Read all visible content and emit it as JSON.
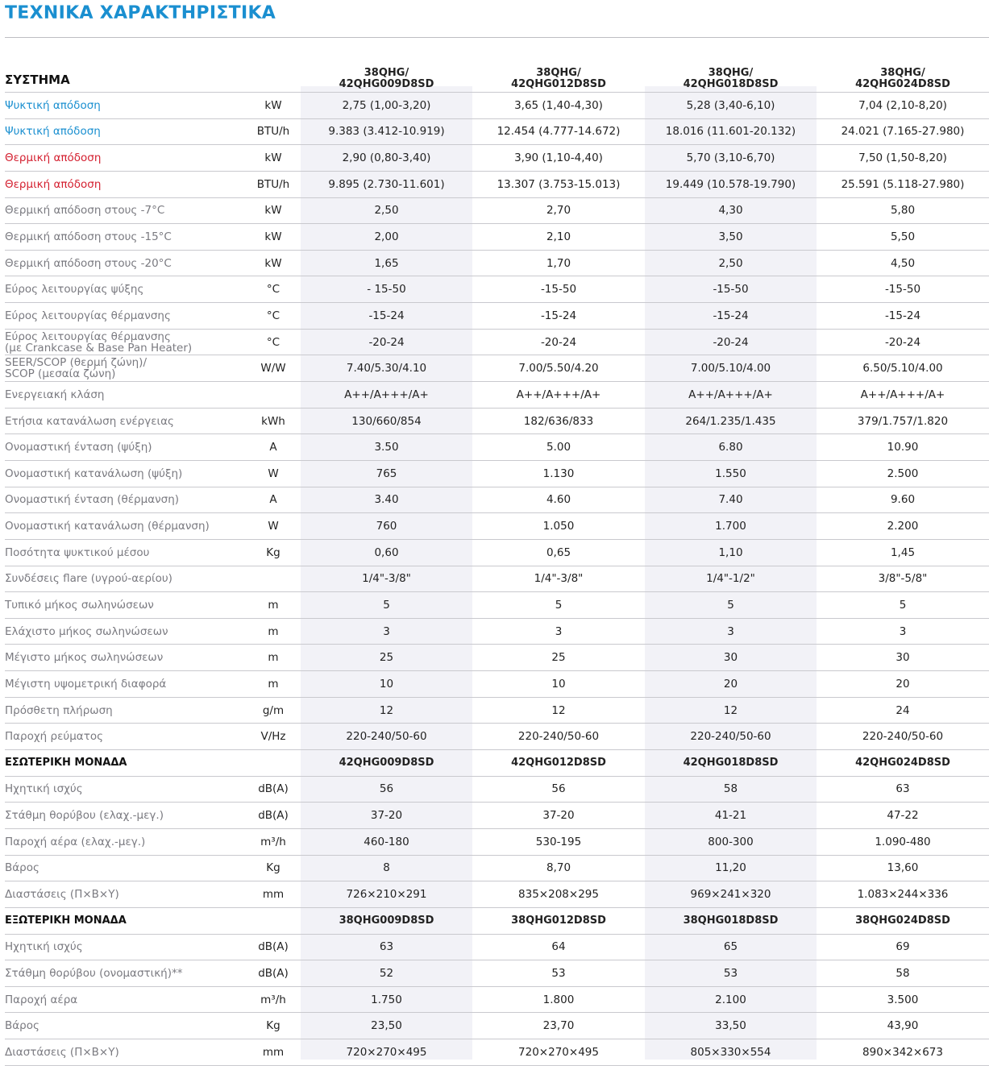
{
  "title": "ΤΕΧΝΙΚΑ ΧΑΡΑΚΤΗΡΙΣΤΙΚΑ",
  "colors": {
    "blue": "#1a8fd0",
    "red": "#d42030"
  },
  "sections": [
    {
      "label": "ΣΥΣΤΗΜΑ",
      "head": true,
      "models": [
        [
          "38QHG/",
          "42QHG009D8SD"
        ],
        [
          "38QHG/",
          "42QHG012D8SD"
        ],
        [
          "38QHG/",
          "42QHG018D8SD"
        ],
        [
          "38QHG/",
          "42QHG024D8SD"
        ]
      ],
      "rows": [
        {
          "label": "Ψυκτική απόδοση",
          "color": "blue",
          "unit": "kW",
          "values": [
            "2,75 (1,00-3,20)",
            "3,65 (1,40-4,30)",
            "5,28 (3,40-6,10)",
            "7,04 (2,10-8,20)"
          ]
        },
        {
          "label": "Ψυκτική απόδοση",
          "color": "blue",
          "unit": "BTU/h",
          "values": [
            "9.383 (3.412-10.919)",
            "12.454 (4.777-14.672)",
            "18.016 (11.601-20.132)",
            "24.021 (7.165-27.980)"
          ]
        },
        {
          "label": "Θερμική απόδοση",
          "color": "red",
          "unit": "kW",
          "values": [
            "2,90 (0,80-3,40)",
            "3,90 (1,10-4,40)",
            "5,70 (3,10-6,70)",
            "7,50 (1,50-8,20)"
          ]
        },
        {
          "label": "Θερμική απόδοση",
          "color": "red",
          "unit": "BTU/h",
          "values": [
            "9.895 (2.730-11.601)",
            "13.307 (3.753-15.013)",
            "19.449 (10.578-19.790)",
            "25.591 (5.118-27.980)"
          ]
        },
        {
          "label": "Θερμική απόδοση στους -7°C",
          "unit": "kW",
          "values": [
            "2,50",
            "2,70",
            "4,30",
            "5,80"
          ]
        },
        {
          "label": "Θερμική απόδοση στους -15°C",
          "unit": "kW",
          "values": [
            "2,00",
            "2,10",
            "3,50",
            "5,50"
          ]
        },
        {
          "label": "Θερμική απόδοση στους -20°C",
          "unit": "kW",
          "values": [
            "1,65",
            "1,70",
            "2,50",
            "4,50"
          ]
        },
        {
          "label": "Εύρος λειτουργίας ψύξης",
          "unit": "°C",
          "values": [
            "- 15-50",
            "-15-50",
            "-15-50",
            "-15-50"
          ]
        },
        {
          "label": "Εύρος λειτουργίας θέρμανσης",
          "unit": "°C",
          "values": [
            "-15-24",
            "-15-24",
            "-15-24",
            "-15-24"
          ]
        },
        {
          "label": "Εύρος λειτουργίας θέρμανσης",
          "label2": "(με Crankcase & Base Pan Heater)",
          "unit": "°C",
          "values": [
            "-20-24",
            "-20-24",
            "-20-24",
            "-20-24"
          ]
        },
        {
          "label": "SEER/SCOP (θερμή ζώνη)/",
          "label2": "SCOP (μεσαία ζώνη)",
          "unit": "W/W",
          "values": [
            "7.40/5.30/4.10",
            "7.00/5.50/4.20",
            "7.00/5.10/4.00",
            "6.50/5.10/4.00"
          ]
        },
        {
          "label": "Ενεργειακή κλάση",
          "unit": "",
          "values": [
            "A++/A+++/A+",
            "A++/A+++/A+",
            "A++/A+++/A+",
            "A++/A+++/A+"
          ]
        },
        {
          "label": "Ετήσια κατανάλωση ενέργειας",
          "unit": "kWh",
          "values": [
            "130/660/854",
            "182/636/833",
            "264/1.235/1.435",
            "379/1.757/1.820"
          ]
        },
        {
          "label": "Ονομαστική ένταση (ψύξη)",
          "unit": "A",
          "values": [
            "3.50",
            "5.00",
            "6.80",
            "10.90"
          ]
        },
        {
          "label": "Ονομαστική κατανάλωση (ψύξη)",
          "unit": "W",
          "values": [
            "765",
            "1.130",
            "1.550",
            "2.500"
          ]
        },
        {
          "label": "Ονομαστική ένταση (θέρμανση)",
          "unit": "A",
          "values": [
            "3.40",
            "4.60",
            "7.40",
            "9.60"
          ]
        },
        {
          "label": "Ονομαστική κατανάλωση (θέρμανση)",
          "unit": "W",
          "values": [
            "760",
            "1.050",
            "1.700",
            "2.200"
          ]
        },
        {
          "label": "Ποσότητα ψυκτικού μέσου",
          "unit": "Kg",
          "values": [
            "0,60",
            "0,65",
            "1,10",
            "1,45"
          ]
        },
        {
          "label": "Συνδέσεις flare (υγρού-αερίου)",
          "unit": "",
          "values": [
            "1/4\"-3/8\"",
            "1/4\"-3/8\"",
            "1/4\"-1/2\"",
            "3/8\"-5/8\""
          ]
        },
        {
          "label": "Τυπικό μήκος σωληνώσεων",
          "unit": "m",
          "values": [
            "5",
            "5",
            "5",
            "5"
          ]
        },
        {
          "label": "Ελάχιστο μήκος σωληνώσεων",
          "unit": "m",
          "values": [
            "3",
            "3",
            "3",
            "3"
          ]
        },
        {
          "label": "Μέγιστο μήκος σωληνώσεων",
          "unit": "m",
          "values": [
            "25",
            "25",
            "30",
            "30"
          ]
        },
        {
          "label": "Μέγιστη υψομετρική διαφορά",
          "unit": "m",
          "values": [
            "10",
            "10",
            "20",
            "20"
          ]
        },
        {
          "label": "Πρόσθετη πλήρωση",
          "unit": "g/m",
          "values": [
            "12",
            "12",
            "12",
            "24"
          ]
        },
        {
          "label": "Παροχή ρεύματος",
          "unit": "V/Hz",
          "values": [
            "220-240/50-60",
            "220-240/50-60",
            "220-240/50-60",
            "220-240/50-60"
          ]
        }
      ]
    },
    {
      "label": "ΕΣΩΤΕΡΙΚΗ ΜΟΝΑΔΑ",
      "models": [
        [
          "42QHG009D8SD"
        ],
        [
          "42QHG012D8SD"
        ],
        [
          "42QHG018D8SD"
        ],
        [
          "42QHG024D8SD"
        ]
      ],
      "rows": [
        {
          "label": "Ηχητική ισχύς",
          "unit": "dB(A)",
          "values": [
            "56",
            "56",
            "58",
            "63"
          ]
        },
        {
          "label": "Στάθμη θορύβου (ελαχ.-μεγ.)",
          "unit": "dB(A)",
          "values": [
            "37-20",
            "37-20",
            "41-21",
            "47-22"
          ]
        },
        {
          "label": "Παροχή αέρα (ελαχ.-μεγ.)",
          "unit": "m³/h",
          "values": [
            "460-180",
            "530-195",
            "800-300",
            "1.090-480"
          ]
        },
        {
          "label": "Βάρος",
          "unit": "Kg",
          "values": [
            "8",
            "8,70",
            "11,20",
            "13,60"
          ]
        },
        {
          "label": "Διαστάσεις (Π×Β×Υ)",
          "unit": "mm",
          "values": [
            "726×210×291",
            "835×208×295",
            "969×241×320",
            "1.083×244×336"
          ]
        }
      ]
    },
    {
      "label": "ΕΞΩΤΕΡΙΚΗ ΜΟΝΑΔΑ",
      "models": [
        [
          "38QHG009D8SD"
        ],
        [
          "38QHG012D8SD"
        ],
        [
          "38QHG018D8SD"
        ],
        [
          "38QHG024D8SD"
        ]
      ],
      "rows": [
        {
          "label": "Ηχητική ισχύς",
          "unit": "dB(A)",
          "values": [
            "63",
            "64",
            "65",
            "69"
          ]
        },
        {
          "label": "Στάθμη θορύβου (ονομαστική)**",
          "unit": "dB(A)",
          "values": [
            "52",
            "53",
            "53",
            "58"
          ]
        },
        {
          "label": "Παροχή αέρα",
          "unit": "m³/h",
          "values": [
            "1.750",
            "1.800",
            "2.100",
            "3.500"
          ]
        },
        {
          "label": "Βάρος",
          "unit": "Kg",
          "values": [
            "23,50",
            "23,70",
            "33,50",
            "43,90"
          ]
        },
        {
          "label": "Διαστάσεις (Π×Β×Υ)",
          "unit": "mm",
          "values": [
            "720×270×495",
            "720×270×495",
            "805×330×554",
            "890×342×673"
          ]
        }
      ]
    }
  ]
}
